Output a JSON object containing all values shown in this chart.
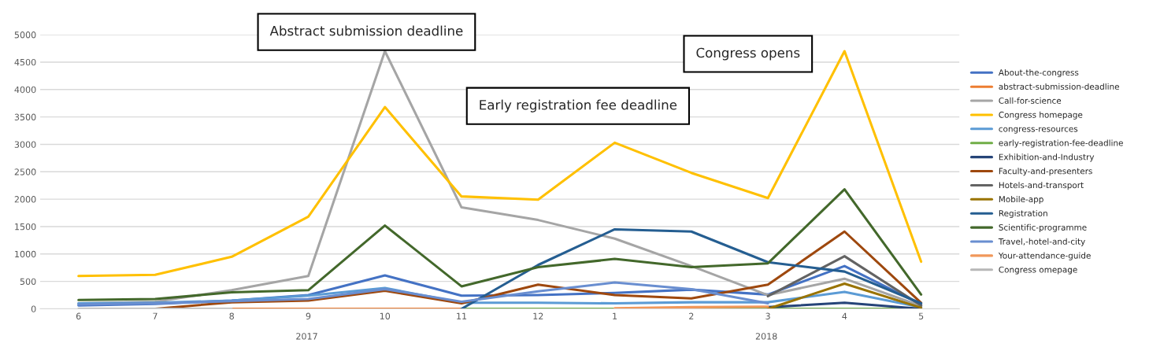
{
  "chart_data": {
    "type": "line",
    "categories": [
      "6",
      "7",
      "8",
      "9",
      "10",
      "11",
      "12",
      "1",
      "2",
      "3",
      "4",
      "5"
    ],
    "series": [
      {
        "name": "About-the-congress",
        "color": "#4472c4",
        "values": [
          60,
          90,
          150,
          250,
          610,
          240,
          250,
          290,
          350,
          260,
          780,
          80
        ]
      },
      {
        "name": "abstract-submission-deadline",
        "color": "#ed7d31",
        "values": [
          null,
          null,
          0,
          0,
          0,
          0,
          null,
          null,
          null,
          null,
          null,
          null
        ]
      },
      {
        "name": "Call-for-science",
        "color": "#a5a5a5",
        "values": [
          100,
          130,
          340,
          600,
          4700,
          1850,
          1620,
          1280,
          780,
          250,
          550,
          50
        ]
      },
      {
        "name": "Congress homepage",
        "color": "#ffc000",
        "values": [
          600,
          620,
          950,
          1680,
          3680,
          2050,
          1990,
          3030,
          2480,
          2020,
          4700,
          860
        ]
      },
      {
        "name": "congress-resources",
        "color": "#5b9bd5",
        "values": [
          100,
          110,
          150,
          240,
          380,
          110,
          110,
          100,
          120,
          120,
          310,
          30
        ]
      },
      {
        "name": "early-registration-fee-deadline",
        "color": "#70ad47",
        "values": [
          null,
          null,
          null,
          null,
          null,
          0,
          0,
          0,
          0,
          0,
          0,
          0
        ]
      },
      {
        "name": "Exhibition-and-Industry",
        "color": "#264478",
        "values": [
          null,
          null,
          null,
          null,
          null,
          null,
          null,
          null,
          null,
          30,
          110,
          0
        ]
      },
      {
        "name": "Faculty-and-presenters",
        "color": "#9e480e",
        "values": [
          null,
          0,
          120,
          150,
          330,
          100,
          440,
          250,
          190,
          440,
          1410,
          110
        ]
      },
      {
        "name": "Hotels-and-transport",
        "color": "#636363",
        "values": [
          null,
          null,
          null,
          null,
          null,
          null,
          null,
          null,
          null,
          230,
          960,
          60
        ]
      },
      {
        "name": "Mobile-app",
        "color": "#997300",
        "values": [
          null,
          null,
          null,
          null,
          null,
          null,
          null,
          null,
          null,
          0,
          460,
          20
        ]
      },
      {
        "name": "Registration",
        "color": "#255e91",
        "values": [
          null,
          null,
          null,
          null,
          null,
          0,
          800,
          1450,
          1410,
          850,
          680,
          100
        ]
      },
      {
        "name": "Scientific-programme",
        "color": "#43682b",
        "values": [
          160,
          180,
          300,
          340,
          1520,
          410,
          760,
          910,
          760,
          830,
          2180,
          260
        ]
      },
      {
        "name": "Travel,-hotel-and-city",
        "color": "#698ed0",
        "values": [
          80,
          100,
          140,
          180,
          360,
          130,
          320,
          480,
          360,
          100,
          null,
          null
        ]
      },
      {
        "name": "Your-attendance-guide",
        "color": "#f1975a",
        "values": [
          null,
          null,
          null,
          null,
          null,
          null,
          null,
          10,
          30,
          40,
          null,
          null
        ]
      },
      {
        "name": "Congress omepage",
        "color": "#b7b7b7",
        "values": [
          0,
          0,
          0,
          null,
          null,
          null,
          null,
          null,
          null,
          null,
          null,
          null
        ]
      }
    ],
    "ylim": [
      0,
      5000
    ],
    "yticks": [
      0,
      500,
      1000,
      1500,
      2000,
      2500,
      3000,
      3500,
      4000,
      4500,
      5000
    ],
    "annotations": [
      "Abstract submission deadline",
      "Early registration fee deadline",
      "Congress opens",
      "2017",
      "2018"
    ],
    "grid": "y",
    "legend": "right",
    "marker": "none",
    "line_style": "solid"
  }
}
